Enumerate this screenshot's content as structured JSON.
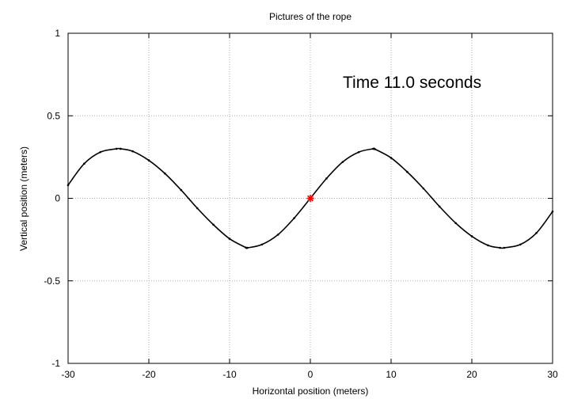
{
  "chart_data": {
    "type": "line",
    "title": "Pictures of the rope",
    "xlabel": "Horizontal position (meters)",
    "ylabel": "Vertical position (meters)",
    "xlim": [
      -30,
      30
    ],
    "ylim": [
      -1,
      1
    ],
    "x_ticks": [
      -30,
      -20,
      -10,
      0,
      10,
      20,
      30
    ],
    "y_ticks": [
      -1,
      -0.5,
      0,
      0.5,
      1
    ],
    "x_tick_labels": [
      "-30",
      "-20",
      "-10",
      "0",
      "10",
      "20",
      "30"
    ],
    "y_tick_labels": [
      "-1",
      "-0.5",
      "0",
      "0.5",
      "1"
    ],
    "grid": true,
    "annotation": "Time 11.0 seconds",
    "series": [
      {
        "color": "#000000",
        "marker": "dot",
        "x": [
          -30,
          -28,
          -26,
          -24,
          -23.5,
          -22,
          -20,
          -18,
          -16,
          -14,
          -12,
          -10,
          -8,
          -7.8,
          -6,
          -4,
          -2,
          0,
          2,
          4,
          6,
          7.8,
          8,
          10,
          12,
          14,
          16,
          18,
          20,
          22,
          23.5,
          24,
          26,
          28,
          30
        ],
        "y": [
          0.08,
          0.21,
          0.28,
          0.3,
          0.3,
          0.285,
          0.23,
          0.15,
          0.05,
          -0.06,
          -0.16,
          -0.245,
          -0.298,
          -0.3,
          -0.28,
          -0.22,
          -0.12,
          0.0,
          0.12,
          0.22,
          0.28,
          0.3,
          0.298,
          0.245,
          0.16,
          0.06,
          -0.05,
          -0.15,
          -0.23,
          -0.285,
          -0.3,
          -0.3,
          -0.28,
          -0.21,
          -0.08
        ]
      }
    ],
    "highlight_point": {
      "x": 0,
      "y": 0,
      "color": "#ff0000",
      "marker": "asterisk"
    }
  }
}
